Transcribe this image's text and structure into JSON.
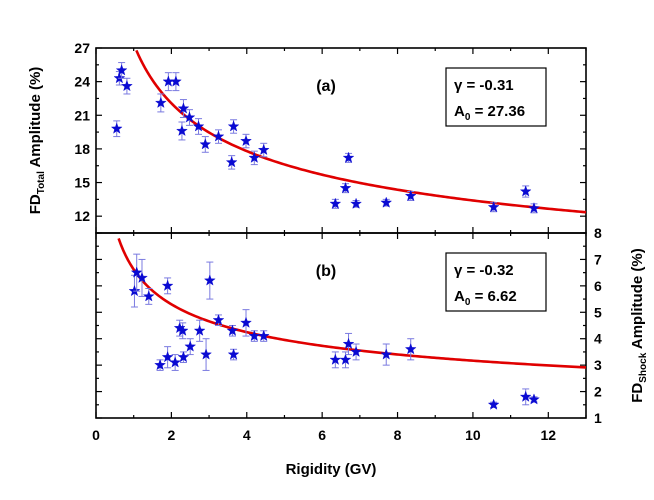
{
  "chart_data": {
    "type": "scatter",
    "xlabel": "Rigidity (GV)",
    "xlim": [
      0,
      13
    ],
    "x_ticks": [
      0,
      2,
      4,
      6,
      8,
      10,
      12
    ],
    "panels": [
      {
        "id": "a",
        "tag": "(a)",
        "ylabel": {
          "main": "FD",
          "sub": "Total",
          "rest": " Amplitude (%)"
        },
        "ylabel_side": "left",
        "ylim": [
          10.5,
          27
        ],
        "y_ticks": [
          12,
          15,
          18,
          21,
          24,
          27
        ],
        "fit": {
          "gamma": -0.31,
          "A0": 27.36,
          "x_from": 0.95,
          "x_to": 13
        },
        "legend": {
          "gamma_text": "γ = -0.31",
          "a0_main": "A",
          "a0_sub": "0",
          "a0_rest": " = 27.36"
        },
        "series": [
          {
            "name": "FD Total amplitude",
            "marker": "star",
            "color": "#0a0ad2",
            "points": [
              {
                "x": 0.55,
                "y": 19.8,
                "err": 0.7
              },
              {
                "x": 0.62,
                "y": 24.3,
                "err": 0.6
              },
              {
                "x": 0.68,
                "y": 25.0,
                "err": 0.7
              },
              {
                "x": 0.82,
                "y": 23.6,
                "err": 0.7
              },
              {
                "x": 1.72,
                "y": 22.1,
                "err": 0.8
              },
              {
                "x": 1.92,
                "y": 24.0,
                "err": 0.8
              },
              {
                "x": 2.12,
                "y": 24.0,
                "err": 0.8
              },
              {
                "x": 2.28,
                "y": 19.6,
                "err": 0.8
              },
              {
                "x": 2.32,
                "y": 21.6,
                "err": 0.8
              },
              {
                "x": 2.48,
                "y": 20.8,
                "err": 0.7
              },
              {
                "x": 2.72,
                "y": 20.0,
                "err": 0.7
              },
              {
                "x": 2.9,
                "y": 18.4,
                "err": 0.7
              },
              {
                "x": 3.25,
                "y": 19.1,
                "err": 0.6
              },
              {
                "x": 3.6,
                "y": 16.8,
                "err": 0.6
              },
              {
                "x": 3.65,
                "y": 20.0,
                "err": 0.6
              },
              {
                "x": 3.98,
                "y": 18.7,
                "err": 0.6
              },
              {
                "x": 4.2,
                "y": 17.2,
                "err": 0.6
              },
              {
                "x": 4.45,
                "y": 17.9,
                "err": 0.6
              },
              {
                "x": 6.35,
                "y": 13.1,
                "err": 0.4
              },
              {
                "x": 6.62,
                "y": 14.5,
                "err": 0.4
              },
              {
                "x": 6.7,
                "y": 17.2,
                "err": 0.4
              },
              {
                "x": 6.9,
                "y": 13.1,
                "err": 0.3
              },
              {
                "x": 7.7,
                "y": 13.2,
                "err": 0.3
              },
              {
                "x": 8.35,
                "y": 13.8,
                "err": 0.4
              },
              {
                "x": 10.55,
                "y": 12.8,
                "err": 0.4
              },
              {
                "x": 11.4,
                "y": 14.2,
                "err": 0.5
              },
              {
                "x": 11.62,
                "y": 12.7,
                "err": 0.4
              }
            ]
          }
        ]
      },
      {
        "id": "b",
        "tag": "(b)",
        "ylabel": {
          "main": "FD",
          "sub": "Shock",
          "rest": " Amplitude (%)"
        },
        "ylabel_side": "right",
        "ylim": [
          1,
          8
        ],
        "y_ticks": [
          1,
          2,
          3,
          4,
          5,
          6,
          7,
          8
        ],
        "fit": {
          "gamma": -0.32,
          "A0": 6.62,
          "x_from": 0.6,
          "x_to": 13
        },
        "legend": {
          "gamma_text": "γ = -0.32",
          "a0_main": "A",
          "a0_sub": "0",
          "a0_rest": " = 6.62"
        },
        "series": [
          {
            "name": "FD Shock amplitude",
            "marker": "star",
            "color": "#0a0ad2",
            "points": [
              {
                "x": 1.02,
                "y": 5.8,
                "err": 0.6
              },
              {
                "x": 1.08,
                "y": 6.5,
                "err": 0.7
              },
              {
                "x": 1.22,
                "y": 6.3,
                "err": 0.7
              },
              {
                "x": 1.4,
                "y": 5.6,
                "err": 0.3
              },
              {
                "x": 1.7,
                "y": 3.0,
                "err": 0.2
              },
              {
                "x": 1.9,
                "y": 6.0,
                "err": 0.3
              },
              {
                "x": 1.9,
                "y": 3.3,
                "err": 0.4
              },
              {
                "x": 2.1,
                "y": 3.1,
                "err": 0.3
              },
              {
                "x": 2.22,
                "y": 4.4,
                "err": 0.3
              },
              {
                "x": 2.3,
                "y": 4.3,
                "err": 0.3
              },
              {
                "x": 2.32,
                "y": 3.3,
                "err": 0.2
              },
              {
                "x": 2.5,
                "y": 3.7,
                "err": 0.3
              },
              {
                "x": 2.75,
                "y": 4.3,
                "err": 0.4
              },
              {
                "x": 2.92,
                "y": 3.4,
                "err": 0.6
              },
              {
                "x": 3.02,
                "y": 6.2,
                "err": 0.7
              },
              {
                "x": 3.25,
                "y": 4.7,
                "err": 0.2
              },
              {
                "x": 3.62,
                "y": 4.3,
                "err": 0.2
              },
              {
                "x": 3.65,
                "y": 3.4,
                "err": 0.2
              },
              {
                "x": 3.98,
                "y": 4.6,
                "err": 0.5
              },
              {
                "x": 4.2,
                "y": 4.1,
                "err": 0.2
              },
              {
                "x": 4.45,
                "y": 4.1,
                "err": 0.2
              },
              {
                "x": 6.35,
                "y": 3.2,
                "err": 0.3
              },
              {
                "x": 6.62,
                "y": 3.2,
                "err": 0.3
              },
              {
                "x": 6.7,
                "y": 3.8,
                "err": 0.4
              },
              {
                "x": 6.9,
                "y": 3.5,
                "err": 0.3
              },
              {
                "x": 7.7,
                "y": 3.4,
                "err": 0.4
              },
              {
                "x": 8.35,
                "y": 3.6,
                "err": 0.4
              },
              {
                "x": 10.55,
                "y": 1.5,
                "err": 0.1
              },
              {
                "x": 11.4,
                "y": 1.8,
                "err": 0.3
              },
              {
                "x": 11.62,
                "y": 1.7,
                "err": 0.1
              }
            ]
          }
        ]
      }
    ],
    "colors": {
      "points": "#0a0ad2",
      "error_bars": "#7a7ae0",
      "fit": "#e00000",
      "axes": "#000000"
    },
    "grid": false
  }
}
